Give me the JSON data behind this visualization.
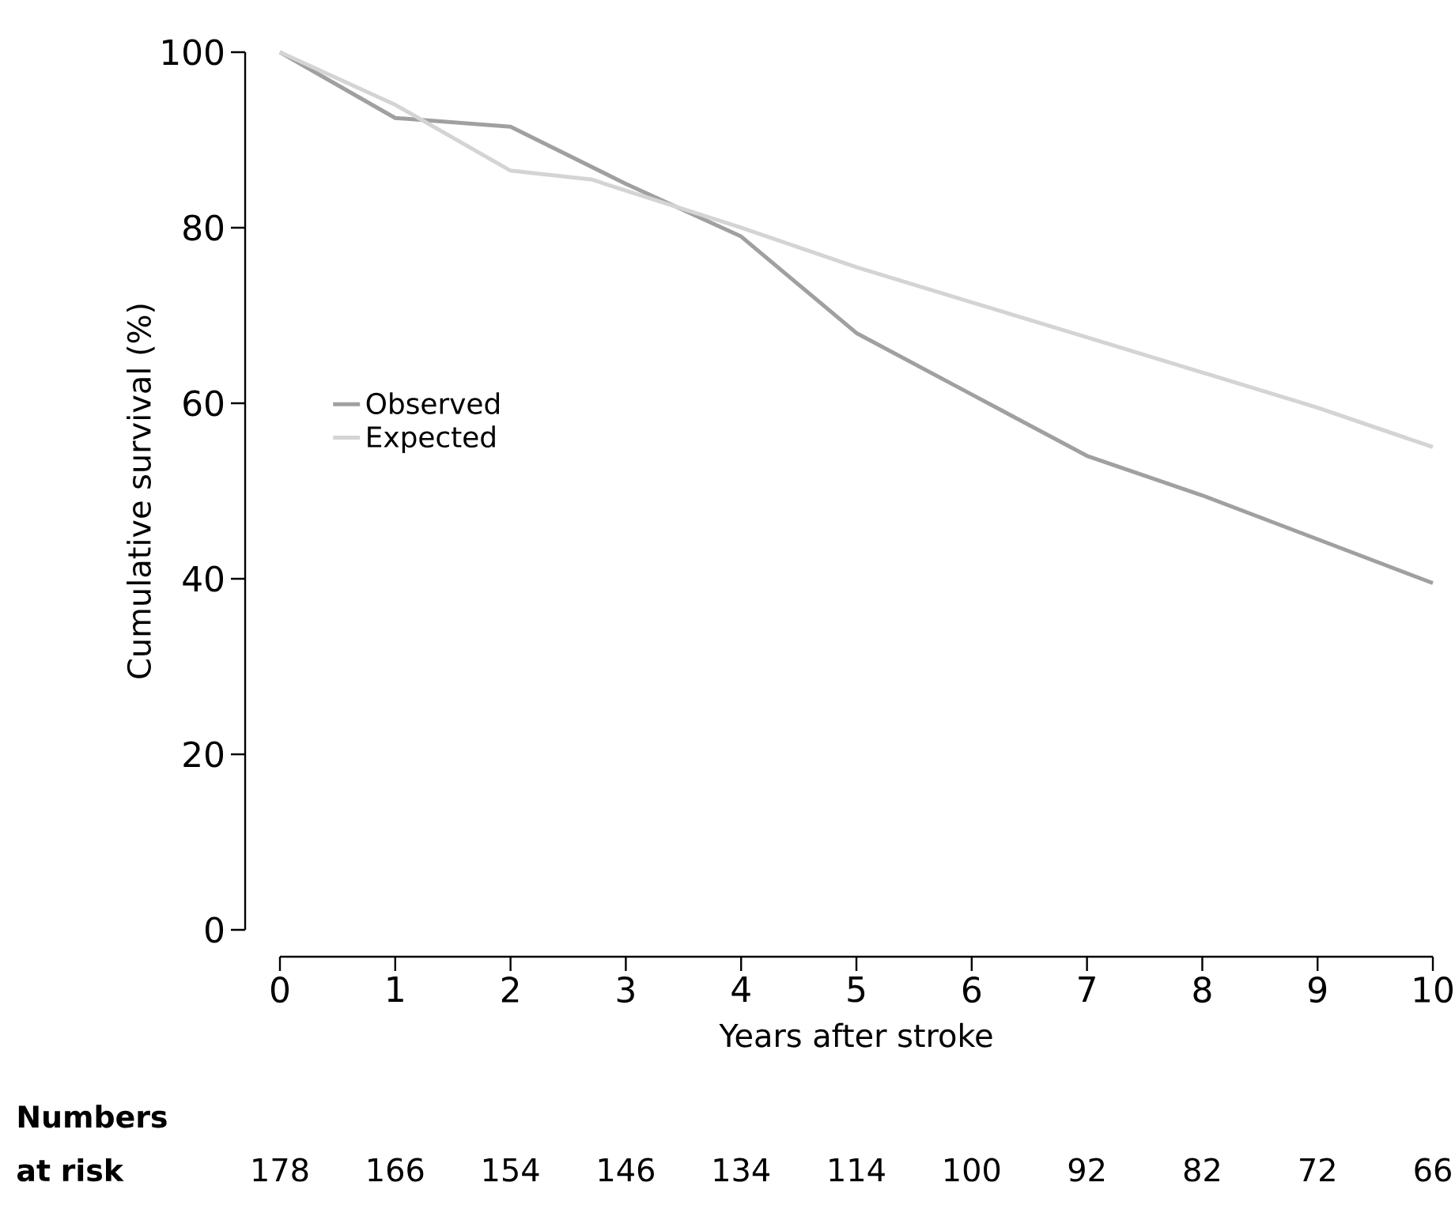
{
  "chart_data": {
    "type": "line",
    "xlabel": "Years after stroke",
    "ylabel": "Cumulative survival (%)",
    "xlim": [
      0,
      10
    ],
    "xticks": [
      0,
      1,
      2,
      3,
      4,
      5,
      6,
      7,
      8,
      9,
      10
    ],
    "ylim": [
      0,
      100
    ],
    "yticks": [
      0,
      20,
      40,
      60,
      80,
      100
    ],
    "grid": false,
    "legend": "left",
    "marker": "none",
    "line_style": "solid",
    "series": [
      {
        "name": "Observed",
        "color": "#a0a0a0",
        "x": [
          0,
          1,
          2,
          3,
          4,
          5,
          6,
          7,
          8,
          9,
          10
        ],
        "values": [
          100,
          92.5,
          91.5,
          85,
          79,
          68,
          61,
          54,
          49.5,
          44.5,
          39.5
        ]
      },
      {
        "name": "Expected",
        "color": "#d4d4d4",
        "x": [
          0,
          1,
          2,
          2.7,
          4,
          5,
          6,
          7,
          8,
          9,
          10
        ],
        "values": [
          100,
          94,
          86.5,
          85.5,
          80,
          75.5,
          71.5,
          67.5,
          63.5,
          59.5,
          55
        ]
      }
    ],
    "annotations": [
      "Numbers at risk",
      "178",
      "166",
      "154",
      "146",
      "134",
      "114",
      "100",
      "92",
      "82",
      "72",
      "66"
    ]
  }
}
